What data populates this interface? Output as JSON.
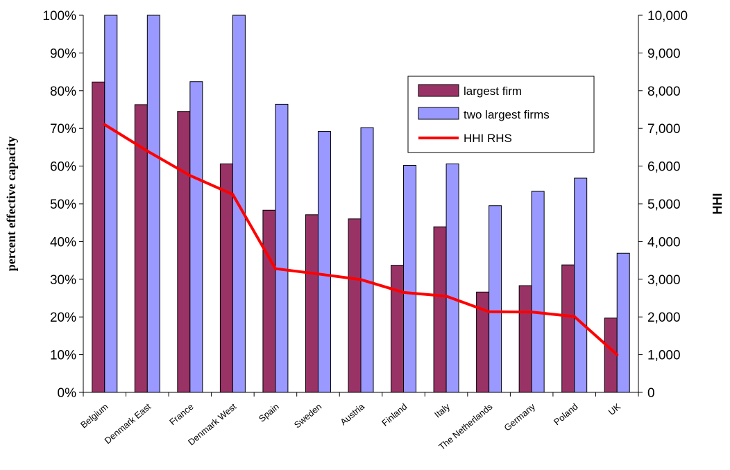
{
  "chart_data": {
    "type": "bar",
    "categories": [
      "Belgium",
      "Denmark East",
      "France",
      "Denmark West",
      "Spain",
      "Sweden",
      "Austria",
      "Finland",
      "Italy",
      "The Netherlands",
      "Germany",
      "Poland",
      "UK"
    ],
    "series": [
      {
        "name": "largest firm",
        "type": "bar",
        "axis": "left",
        "color": "#993366",
        "values": [
          82.3,
          76.3,
          74.5,
          60.6,
          48.3,
          47.1,
          46.0,
          33.7,
          43.9,
          26.6,
          28.3,
          33.8,
          19.7
        ]
      },
      {
        "name": "two largest firms",
        "type": "bar",
        "axis": "left",
        "color": "#9999ff",
        "values": [
          100,
          100,
          82.4,
          100,
          76.4,
          69.2,
          70.2,
          60.2,
          60.6,
          49.5,
          53.3,
          56.8,
          36.9
        ]
      },
      {
        "name": "HHI RHS",
        "type": "line",
        "axis": "right",
        "color": "#ff0000",
        "values": [
          7100,
          6400,
          5750,
          5250,
          3280,
          3140,
          2990,
          2650,
          2550,
          2140,
          2130,
          2010,
          1000
        ]
      }
    ],
    "ylabel": "percent effective capacity",
    "y2label": "HHI",
    "ylim": [
      0,
      100
    ],
    "y2lim": [
      0,
      10000
    ],
    "yticks": [
      "0%",
      "10%",
      "20%",
      "30%",
      "40%",
      "50%",
      "60%",
      "70%",
      "80%",
      "90%",
      "100%"
    ],
    "y2ticks": [
      "0",
      "1,000",
      "2,000",
      "3,000",
      "4,000",
      "5,000",
      "6,000",
      "7,000",
      "8,000",
      "9,000",
      "10,000"
    ],
    "grid": false,
    "legend": "top-right"
  }
}
